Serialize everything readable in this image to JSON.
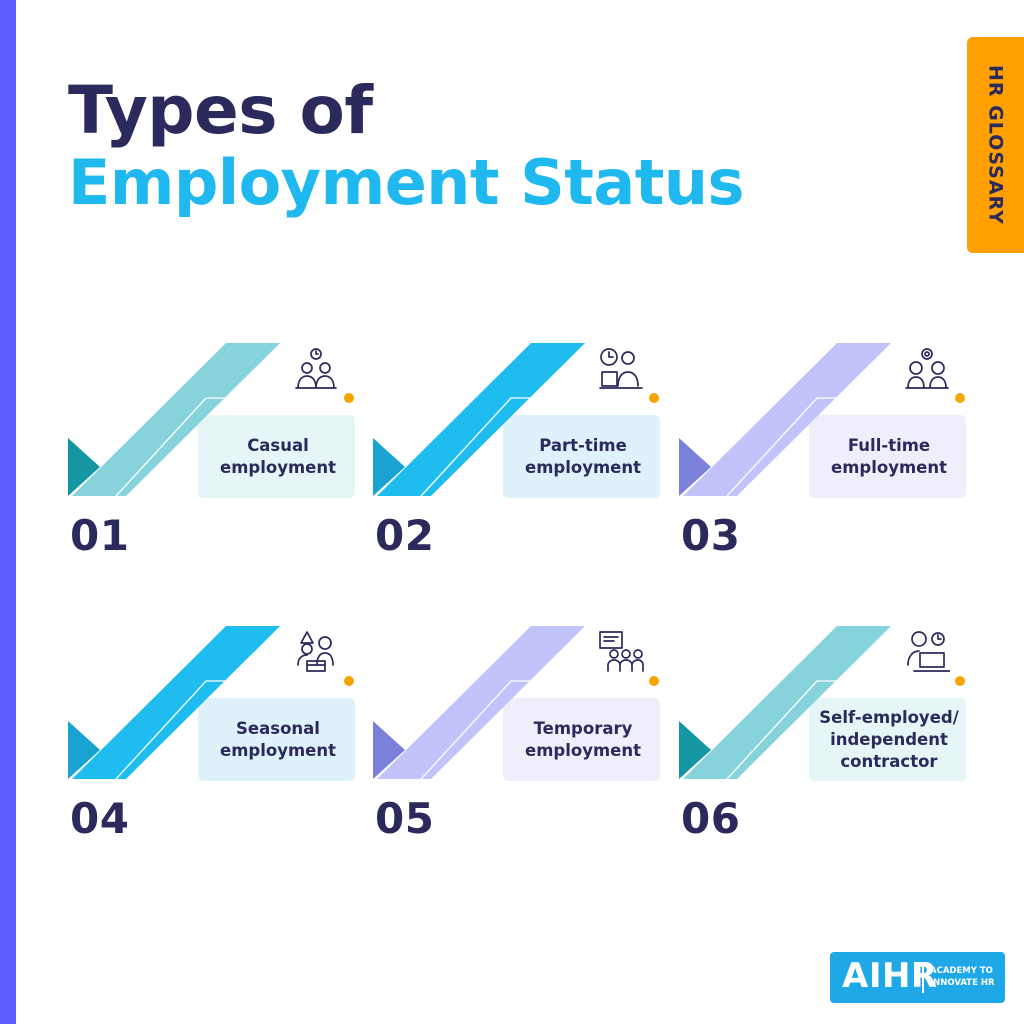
{
  "colors": {
    "sidebar": "#5a5cff",
    "title_dark": "#2b2a5c",
    "title_accent": "#1fb8ef",
    "tab_bg": "#ffa000",
    "tab_text": "#2b2a5c",
    "dot": "#f5a400",
    "logo_bg": "#1ea8e8"
  },
  "title": {
    "line1": "Types of",
    "line2": "Employment Status"
  },
  "tab": {
    "label": "HR GLOSSARY"
  },
  "items": [
    {
      "number": "01",
      "label_lines": [
        "Casual",
        "employment"
      ],
      "icon": "people-clock-icon",
      "theme": "teal"
    },
    {
      "number": "02",
      "label_lines": [
        "Part-time",
        "employment"
      ],
      "icon": "clock-worker-icon",
      "theme": "blue"
    },
    {
      "number": "03",
      "label_lines": [
        "Full-time",
        "employment"
      ],
      "icon": "team-gear-icon",
      "theme": "lavender"
    },
    {
      "number": "04",
      "label_lines": [
        "Seasonal",
        "employment"
      ],
      "icon": "seasonal-workers-icon",
      "theme": "blue"
    },
    {
      "number": "05",
      "label_lines": [
        "Temporary",
        "employment"
      ],
      "icon": "temporary-staff-icon",
      "theme": "lavender"
    },
    {
      "number": "06",
      "label_lines": [
        "Self-employed/",
        "independent",
        "contractor"
      ],
      "icon": "freelancer-laptop-icon",
      "theme": "teal"
    }
  ],
  "themes": {
    "teal": {
      "swoosh": "#86d3dc",
      "dark": "#1497a3",
      "box": "#e6f6f6"
    },
    "blue": {
      "swoosh": "#1fbcef",
      "dark": "#18a3d3",
      "box": "#dff2fb"
    },
    "lavender": {
      "swoosh": "#c2c3fb",
      "dark": "#7b80db",
      "box": "#efeffc"
    }
  },
  "logo": {
    "big": "AIHR",
    "small_lines": [
      "ACADEMY TO",
      "INNOVATE HR"
    ]
  }
}
